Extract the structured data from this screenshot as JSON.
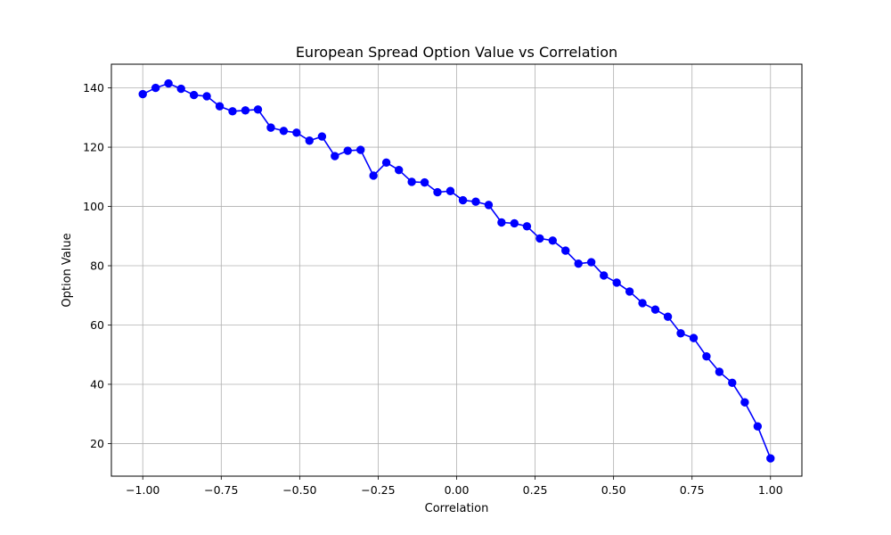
{
  "chart_data": {
    "type": "line",
    "title": "European Spread Option Value vs Correlation",
    "xlabel": "Correlation",
    "ylabel": "Option Value",
    "xlim": [
      -1.1,
      1.1
    ],
    "ylim": [
      9,
      148
    ],
    "xticks": [
      -1.0,
      -0.75,
      -0.5,
      -0.25,
      0.0,
      0.25,
      0.5,
      0.75,
      1.0
    ],
    "xtick_labels": [
      "−1.00",
      "−0.75",
      "−0.50",
      "−0.25",
      "0.00",
      "0.25",
      "0.50",
      "0.75",
      "1.00"
    ],
    "yticks": [
      20,
      40,
      60,
      80,
      100,
      120,
      140
    ],
    "ytick_labels": [
      "20",
      "40",
      "60",
      "80",
      "100",
      "120",
      "140"
    ],
    "grid": true,
    "marker": "circle",
    "series": [
      {
        "color": "#0000ff",
        "x": [
          -1.0,
          -0.959,
          -0.918,
          -0.878,
          -0.837,
          -0.796,
          -0.755,
          -0.714,
          -0.673,
          -0.633,
          -0.592,
          -0.551,
          -0.51,
          -0.469,
          -0.429,
          -0.388,
          -0.347,
          -0.306,
          -0.265,
          -0.224,
          -0.184,
          -0.143,
          -0.102,
          -0.061,
          -0.02,
          0.02,
          0.061,
          0.102,
          0.143,
          0.184,
          0.224,
          0.265,
          0.306,
          0.347,
          0.388,
          0.429,
          0.469,
          0.51,
          0.551,
          0.592,
          0.633,
          0.673,
          0.714,
          0.755,
          0.796,
          0.837,
          0.878,
          0.918,
          0.959,
          1.0
        ],
        "y": [
          137.9,
          140.0,
          141.5,
          139.7,
          137.6,
          137.2,
          133.8,
          132.1,
          132.4,
          132.7,
          126.6,
          125.5,
          124.9,
          122.2,
          123.6,
          117.0,
          118.8,
          119.1,
          110.4,
          114.8,
          112.3,
          108.3,
          108.1,
          104.8,
          105.2,
          102.1,
          101.6,
          100.5,
          94.6,
          94.3,
          93.3,
          89.2,
          88.5,
          85.1,
          80.7,
          81.2,
          76.7,
          74.3,
          71.3,
          67.4,
          65.2,
          62.8,
          57.2,
          55.6,
          49.4,
          44.2,
          40.5,
          33.9,
          25.8,
          15.0
        ]
      }
    ]
  }
}
